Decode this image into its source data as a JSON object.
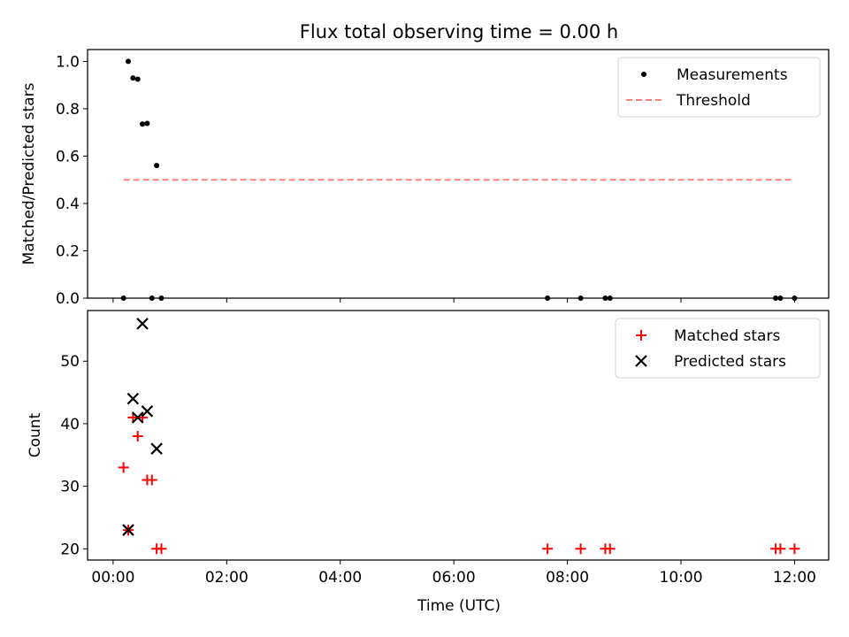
{
  "figure": {
    "title": "Flux total observing time = 0.00 h",
    "xlabel": "Time (UTC)"
  },
  "colors": {
    "measurements": "#000000",
    "threshold": "#ff7f7f",
    "matched": "#ff0000",
    "predicted": "#000000"
  },
  "chart_data": [
    {
      "type": "scatter",
      "ylabel": "Matched/Predicted stars",
      "xlim": [
        "23:33",
        "12:36"
      ],
      "ylim": [
        0,
        1.05
      ],
      "x_ticks": [
        "00:00",
        "02:00",
        "04:00",
        "06:00",
        "08:00",
        "10:00",
        "12:00"
      ],
      "x_tick_labels_visible": false,
      "y_ticks": [
        "0.0",
        "0.2",
        "0.4",
        "0.6",
        "0.8",
        "1.0"
      ],
      "legend_position": "top-right",
      "series": [
        {
          "name": "Measurements",
          "kind": "points",
          "x": [
            "00:11",
            "00:16",
            "00:21",
            "00:26",
            "00:31",
            "00:36",
            "00:41",
            "00:46",
            "00:51",
            "07:39",
            "08:14",
            "08:40",
            "08:45",
            "11:40",
            "11:45",
            "12:00"
          ],
          "y": [
            0.0,
            1.0,
            0.93,
            0.925,
            0.735,
            0.738,
            0.0,
            0.56,
            0.0,
            0.0,
            0.0,
            0.0,
            0.0,
            0.0,
            0.0,
            0.0
          ]
        },
        {
          "name": "Threshold",
          "kind": "dashed-line",
          "x": [
            "00:11",
            "12:00"
          ],
          "y": [
            0.5,
            0.5
          ]
        }
      ]
    },
    {
      "type": "scatter",
      "ylabel": "Count",
      "xlim": [
        "23:33",
        "12:36"
      ],
      "ylim": [
        18.2,
        58.1
      ],
      "x_ticks": [
        "00:00",
        "02:00",
        "04:00",
        "06:00",
        "08:00",
        "10:00",
        "12:00"
      ],
      "y_ticks": [
        "20",
        "30",
        "40",
        "50"
      ],
      "legend_position": "top-right",
      "series": [
        {
          "name": "Matched stars",
          "marker": "plus",
          "x": [
            "00:11",
            "00:16",
            "00:21",
            "00:26",
            "00:31",
            "00:36",
            "00:41",
            "00:46",
            "00:51",
            "07:39",
            "08:14",
            "08:40",
            "08:45",
            "11:40",
            "11:45",
            "12:00"
          ],
          "y": [
            33,
            23,
            41,
            38,
            41,
            31,
            31,
            20,
            20,
            20,
            20,
            20,
            20,
            20,
            20,
            20
          ]
        },
        {
          "name": "Predicted stars",
          "marker": "x",
          "x": [
            "00:16",
            "00:21",
            "00:26",
            "00:31",
            "00:36",
            "00:46"
          ],
          "y": [
            23,
            44,
            41,
            56,
            42,
            36
          ]
        }
      ]
    }
  ]
}
